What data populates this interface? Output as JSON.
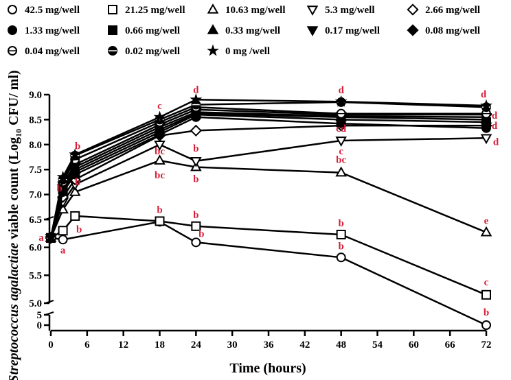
{
  "chart_data": {
    "type": "line",
    "title": "",
    "xlabel": "Time (hours)",
    "ylabel": {
      "italic": "Streptococcus agalactiae",
      "plain": " viable count (Log",
      "sub": "10",
      "tail": " CFU/ ml)"
    },
    "x_ticks": [
      0,
      6,
      12,
      18,
      24,
      30,
      36,
      42,
      48,
      54,
      60,
      66,
      72
    ],
    "xlim": [
      0,
      72
    ],
    "y_segments": [
      {
        "ylim": [
          6.5,
          9.0
        ],
        "ticks": [
          "6.5",
          "7.0",
          "7.5",
          "8.0",
          "8.5",
          "9.0"
        ]
      },
      {
        "ylim": [
          5.0,
          6.5
        ],
        "ticks": [
          "5.0",
          "5.5",
          "6.0",
          "6.5"
        ]
      },
      {
        "ylim": [
          0,
          5
        ],
        "ticks": [
          "0",
          "5"
        ]
      }
    ],
    "legend_position": "top",
    "accent_color": "#d6203a",
    "series": [
      {
        "name": "42.5 mg/well",
        "marker": "circle-open",
        "values": [
          [
            0,
            6.17
          ],
          [
            2,
            6.14
          ],
          [
            18,
            6.46
          ],
          [
            24,
            6.09
          ],
          [
            48,
            5.82
          ],
          [
            72,
            0.0
          ]
        ]
      },
      {
        "name": "21.25 mg/well",
        "marker": "square-open",
        "values": [
          [
            0,
            6.17
          ],
          [
            2,
            6.3
          ],
          [
            4,
            6.57
          ],
          [
            18,
            6.47
          ],
          [
            24,
            6.38
          ],
          [
            48,
            6.23
          ],
          [
            72,
            5.15
          ]
        ]
      },
      {
        "name": "10.63 mg/well",
        "marker": "triangle-open",
        "values": [
          [
            0,
            6.17
          ],
          [
            2,
            6.7
          ],
          [
            4,
            7.05
          ],
          [
            18,
            7.68
          ],
          [
            24,
            7.55
          ],
          [
            48,
            7.44
          ],
          [
            72,
            6.27
          ]
        ]
      },
      {
        "name": "5.3 mg/well",
        "marker": "triangle-down-open",
        "values": [
          [
            0,
            6.17
          ],
          [
            2,
            6.85
          ],
          [
            4,
            7.2
          ],
          [
            18,
            8.0
          ],
          [
            24,
            7.67
          ],
          [
            48,
            8.08
          ],
          [
            72,
            8.13
          ]
        ]
      },
      {
        "name": "2.66 mg/well",
        "marker": "diamond-open",
        "values": [
          [
            0,
            6.17
          ],
          [
            2,
            6.95
          ],
          [
            4,
            7.3
          ],
          [
            18,
            8.18
          ],
          [
            24,
            8.28
          ],
          [
            48,
            8.38
          ],
          [
            72,
            8.38
          ]
        ]
      },
      {
        "name": "1.33 mg/well",
        "marker": "circle",
        "values": [
          [
            0,
            6.17
          ],
          [
            2,
            7.05
          ],
          [
            4,
            7.4
          ],
          [
            18,
            8.2
          ],
          [
            24,
            8.55
          ],
          [
            48,
            8.42
          ],
          [
            72,
            8.33
          ]
        ]
      },
      {
        "name": "0.66 mg/well",
        "marker": "square",
        "values": [
          [
            0,
            6.17
          ],
          [
            2,
            7.1
          ],
          [
            4,
            7.45
          ],
          [
            18,
            8.25
          ],
          [
            24,
            8.6
          ],
          [
            48,
            8.5
          ],
          [
            72,
            8.45
          ]
        ]
      },
      {
        "name": "0.33 mg/well",
        "marker": "triangle",
        "values": [
          [
            0,
            6.17
          ],
          [
            2,
            7.15
          ],
          [
            4,
            7.5
          ],
          [
            18,
            8.3
          ],
          [
            24,
            8.62
          ],
          [
            48,
            8.55
          ],
          [
            72,
            8.5
          ]
        ]
      },
      {
        "name": "0.17 mg/well",
        "marker": "triangle-down",
        "values": [
          [
            0,
            6.17
          ],
          [
            2,
            7.18
          ],
          [
            4,
            7.55
          ],
          [
            18,
            8.35
          ],
          [
            24,
            8.65
          ],
          [
            48,
            8.57
          ],
          [
            72,
            8.55
          ]
        ]
      },
      {
        "name": "0.08 mg/well",
        "marker": "diamond",
        "values": [
          [
            0,
            6.17
          ],
          [
            2,
            7.2
          ],
          [
            4,
            7.6
          ],
          [
            18,
            8.4
          ],
          [
            24,
            8.7
          ],
          [
            48,
            8.6
          ],
          [
            72,
            8.6
          ]
        ]
      },
      {
        "name": "0.04 mg/well",
        "marker": "circle-open-bar",
        "values": [
          [
            0,
            6.17
          ],
          [
            2,
            7.25
          ],
          [
            4,
            7.7
          ],
          [
            18,
            8.45
          ],
          [
            24,
            8.75
          ],
          [
            48,
            8.62
          ],
          [
            72,
            8.62
          ]
        ]
      },
      {
        "name": "0.02 mg/well",
        "marker": "circle-bar",
        "values": [
          [
            0,
            6.17
          ],
          [
            2,
            7.3
          ],
          [
            4,
            7.78
          ],
          [
            18,
            8.5
          ],
          [
            24,
            8.8
          ],
          [
            48,
            8.85
          ],
          [
            72,
            8.75
          ]
        ]
      },
      {
        "name": "0 mg /well",
        "marker": "star",
        "values": [
          [
            0,
            6.17
          ],
          [
            2,
            7.35
          ],
          [
            4,
            7.8
          ],
          [
            18,
            8.55
          ],
          [
            24,
            8.9
          ],
          [
            48,
            8.86
          ],
          [
            72,
            8.78
          ]
        ]
      }
    ],
    "annotations": [
      {
        "text": "a",
        "x": 0,
        "y": 6.18,
        "dx": -14,
        "dy": 5
      },
      {
        "text": "a",
        "x": 2,
        "y": 6.14,
        "dx": 0,
        "dy": 20
      },
      {
        "text": "b",
        "x": 2,
        "y": 6.95,
        "dx": -5,
        "dy": -8
      },
      {
        "text": "b",
        "x": 4,
        "y": 7.8,
        "dx": 4,
        "dy": -8
      },
      {
        "text": "b",
        "x": 4,
        "y": 7.05,
        "dx": 4,
        "dy": -10
      },
      {
        "text": "b",
        "x": 4,
        "y": 6.57,
        "dx": 6,
        "dy": 24
      },
      {
        "text": "c",
        "x": 18,
        "y": 8.55,
        "dx": 0,
        "dy": -12
      },
      {
        "text": "bc",
        "x": 18,
        "y": 8.0,
        "dx": 0,
        "dy": 14
      },
      {
        "text": "bc",
        "x": 18,
        "y": 7.68,
        "dx": 0,
        "dy": 26
      },
      {
        "text": "b",
        "x": 18,
        "y": 6.47,
        "dx": 0,
        "dy": -12
      },
      {
        "text": "d",
        "x": 24,
        "y": 8.9,
        "dx": 0,
        "dy": -10
      },
      {
        "text": "b",
        "x": 24,
        "y": 7.67,
        "dx": 0,
        "dy": -14
      },
      {
        "text": "b",
        "x": 24,
        "y": 7.55,
        "dx": 0,
        "dy": 22
      },
      {
        "text": "b",
        "x": 24,
        "y": 6.38,
        "dx": 0,
        "dy": -12
      },
      {
        "text": "b",
        "x": 24,
        "y": 6.09,
        "dx": 8,
        "dy": -8
      },
      {
        "text": "d",
        "x": 48,
        "y": 8.86,
        "dx": 0,
        "dy": -12
      },
      {
        "text": "cd",
        "x": 48,
        "y": 8.42,
        "dx": 0,
        "dy": 12
      },
      {
        "text": "c",
        "x": 48,
        "y": 8.08,
        "dx": 0,
        "dy": 20
      },
      {
        "text": "bc",
        "x": 48,
        "y": 7.44,
        "dx": 0,
        "dy": -14
      },
      {
        "text": "b",
        "x": 48,
        "y": 6.23,
        "dx": 0,
        "dy": -12
      },
      {
        "text": "b",
        "x": 48,
        "y": 5.82,
        "dx": 0,
        "dy": -12
      },
      {
        "text": "d",
        "x": 72,
        "y": 8.78,
        "dx": -4,
        "dy": -12
      },
      {
        "text": "d",
        "x": 72,
        "y": 8.6,
        "dx": 12,
        "dy": 6
      },
      {
        "text": "d",
        "x": 72,
        "y": 8.45,
        "dx": 12,
        "dy": 10
      },
      {
        "text": "d",
        "x": 72,
        "y": 8.13,
        "dx": 14,
        "dy": 10
      },
      {
        "text": "e",
        "x": 72,
        "y": 6.27,
        "dx": 0,
        "dy": -12
      },
      {
        "text": "c",
        "x": 72,
        "y": 5.15,
        "dx": 0,
        "dy": -14
      },
      {
        "text": "b",
        "x": 72,
        "y": 0.0,
        "dx": 0,
        "dy": -14
      }
    ]
  }
}
